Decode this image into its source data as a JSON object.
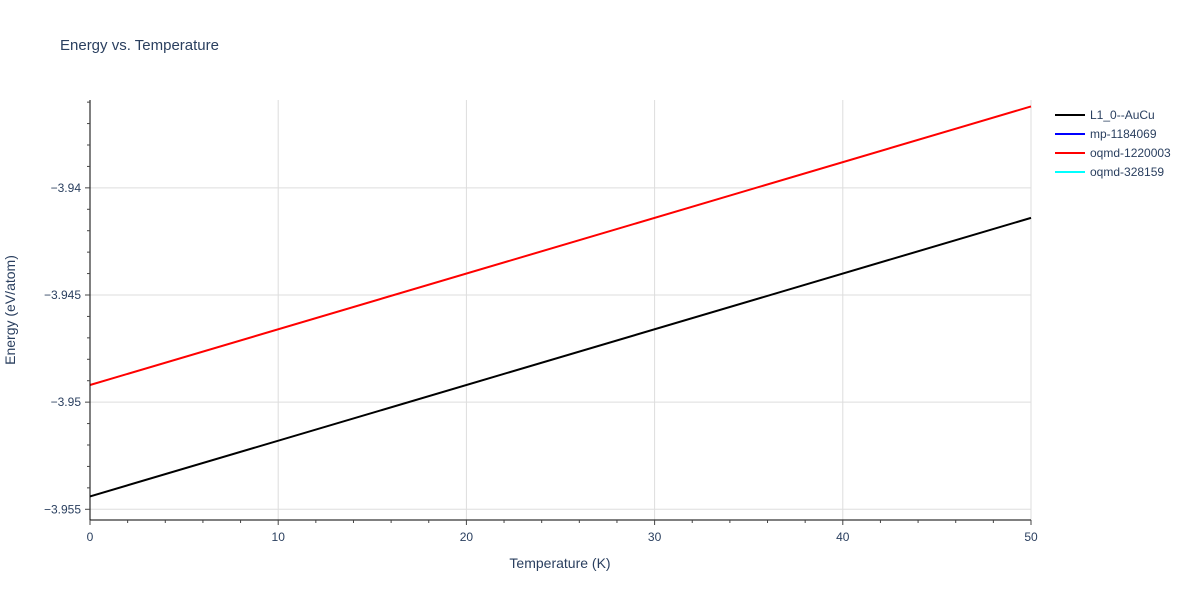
{
  "chart_data": {
    "type": "line",
    "title": "Energy vs. Temperature",
    "xlabel": "Temperature (K)",
    "ylabel": "Energy (eV/atom)",
    "xlim": [
      0,
      50
    ],
    "ylim": [
      -3.9555,
      -3.9359
    ],
    "x_ticks": [
      0,
      10,
      20,
      30,
      40,
      50
    ],
    "x_tick_labels": [
      "0",
      "10",
      "20",
      "30",
      "40",
      "50"
    ],
    "y_ticks": [
      -3.955,
      -3.95,
      -3.945,
      -3.94
    ],
    "y_tick_labels": [
      "−3.955",
      "−3.95",
      "−3.945",
      "−3.94"
    ],
    "grid": true,
    "legend_position": "top-right",
    "series": [
      {
        "name": "L1_0--AuCu",
        "color": "#000000",
        "x": [
          0,
          50
        ],
        "y": [
          -3.9544,
          -3.9414
        ]
      },
      {
        "name": "mp-1184069",
        "color": "#0000ff",
        "x": [],
        "y": []
      },
      {
        "name": "oqmd-1220003",
        "color": "#ff0000",
        "x": [
          0,
          50
        ],
        "y": [
          -3.9492,
          -3.9362
        ]
      },
      {
        "name": "oqmd-328159",
        "color": "#00ffff",
        "x": [],
        "y": []
      }
    ]
  }
}
